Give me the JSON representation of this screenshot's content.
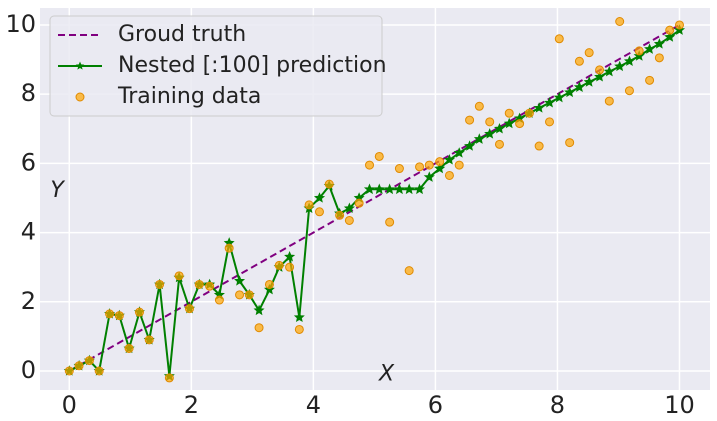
{
  "chart_data": {
    "type": "line",
    "xlim": [
      -0.48,
      10.5
    ],
    "ylim": [
      -0.55,
      10.49
    ],
    "xticks": [
      0,
      2,
      4,
      6,
      8,
      10
    ],
    "yticks": [
      0,
      2,
      4,
      6,
      8,
      10
    ],
    "grid": true,
    "legend": "upper left",
    "annotations": [
      {
        "text": "Y",
        "x": -0.2,
        "y": 5.2
      },
      {
        "text": "X",
        "x": 5.2,
        "y": -0.1
      }
    ],
    "series": [
      {
        "name": "Groud truth",
        "kind": "line",
        "dashed": true,
        "color": "#800080",
        "x": [
          0,
          10
        ],
        "values": [
          0,
          10
        ]
      },
      {
        "name": "Nested [:100] prediction",
        "kind": "line",
        "marker": "star",
        "color": "#008000",
        "x": [
          0,
          0.16,
          0.33,
          0.49,
          0.66,
          0.82,
          0.98,
          1.15,
          1.31,
          1.48,
          1.64,
          1.8,
          1.97,
          2.13,
          2.3,
          2.46,
          2.62,
          2.79,
          2.95,
          3.11,
          3.28,
          3.44,
          3.61,
          3.77,
          3.93,
          4.1,
          4.26,
          4.43,
          4.59,
          4.75,
          4.92,
          5.08,
          5.25,
          5.41,
          5.57,
          5.74,
          5.9,
          6.07,
          6.23,
          6.39,
          6.56,
          6.72,
          6.89,
          7.05,
          7.21,
          7.38,
          7.54,
          7.7,
          7.87,
          8.03,
          8.2,
          8.36,
          8.52,
          8.69,
          8.85,
          9.02,
          9.18,
          9.34,
          9.51,
          9.67,
          9.84,
          10
        ],
        "values": [
          0,
          0.15,
          0.3,
          0,
          1.65,
          1.6,
          0.65,
          1.7,
          0.9,
          2.5,
          -0.15,
          2.7,
          1.8,
          2.5,
          2.5,
          2.2,
          3.7,
          2.6,
          2.2,
          1.75,
          2.35,
          3,
          3.3,
          1.55,
          4.7,
          5,
          5.35,
          4.55,
          4.7,
          5,
          5.25,
          5.25,
          5.25,
          5.25,
          5.25,
          5.25,
          5.6,
          5.85,
          6.1,
          6.3,
          6.5,
          6.7,
          6.85,
          7,
          7.15,
          7.3,
          7.45,
          7.6,
          7.75,
          7.9,
          8.05,
          8.2,
          8.35,
          8.5,
          8.65,
          8.8,
          8.95,
          9.1,
          9.3,
          9.45,
          9.65,
          9.85
        ]
      },
      {
        "name": "Training data",
        "kind": "scatter",
        "color": "#ffa500",
        "x": [
          0,
          0.16,
          0.33,
          0.49,
          0.66,
          0.82,
          0.98,
          1.15,
          1.31,
          1.48,
          1.64,
          1.8,
          1.97,
          2.13,
          2.3,
          2.46,
          2.62,
          2.79,
          2.95,
          3.11,
          3.28,
          3.44,
          3.61,
          3.77,
          3.93,
          4.1,
          4.26,
          4.43,
          4.59,
          4.75,
          4.92,
          5.08,
          5.25,
          5.41,
          5.57,
          5.74,
          5.9,
          6.07,
          6.23,
          6.39,
          6.56,
          6.72,
          6.89,
          7.05,
          7.21,
          7.38,
          7.54,
          7.7,
          7.87,
          8.03,
          8.2,
          8.36,
          8.52,
          8.69,
          8.85,
          9.02,
          9.18,
          9.34,
          9.51,
          9.67,
          9.84,
          10
        ],
        "values": [
          0,
          0.15,
          0.3,
          0,
          1.65,
          1.6,
          0.65,
          1.7,
          0.9,
          2.5,
          -0.2,
          2.75,
          1.8,
          2.5,
          2.45,
          2.05,
          3.55,
          2.2,
          2.2,
          1.25,
          2.5,
          3.05,
          3,
          1.2,
          4.8,
          4.6,
          5.4,
          4.5,
          4.35,
          4.85,
          5.95,
          6.2,
          4.3,
          5.85,
          2.9,
          5.9,
          5.95,
          6.05,
          5.65,
          5.95,
          7.25,
          7.65,
          7.2,
          6.55,
          7.45,
          7.15,
          7.45,
          6.5,
          7.2,
          9.6,
          6.6,
          8.95,
          9.2,
          8.7,
          7.8,
          10.1,
          8.1,
          9.25,
          8.4,
          9.05,
          9.85,
          10
        ]
      }
    ]
  }
}
